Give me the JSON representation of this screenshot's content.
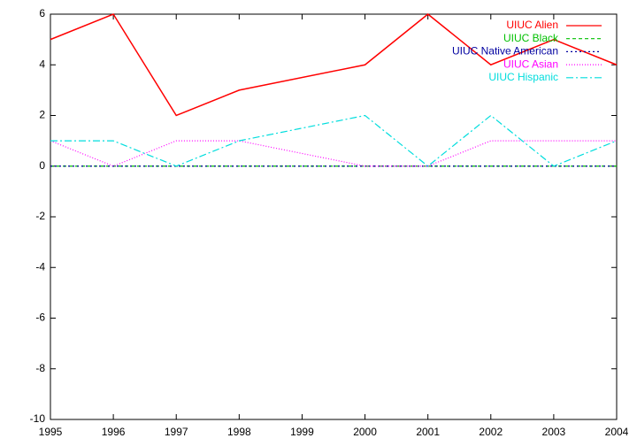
{
  "chart_data": {
    "type": "line",
    "x": [
      1995,
      1996,
      1997,
      1998,
      2000,
      2001,
      2002,
      2003,
      2004
    ],
    "series": [
      {
        "name": "UIUC Alien",
        "color": "#ff0000",
        "values": [
          5,
          6,
          2,
          3,
          4,
          6,
          4,
          5,
          4
        ]
      },
      {
        "name": "UIUC Black",
        "color": "#00c000",
        "values": [
          0,
          0,
          0,
          0,
          0,
          0,
          0,
          0,
          0
        ]
      },
      {
        "name": "UIUC Native American",
        "color": "#0000a0",
        "values": [
          0,
          0,
          0,
          0,
          0,
          0,
          0,
          0,
          0
        ]
      },
      {
        "name": "UIUC Asian",
        "color": "#ff00ff",
        "values": [
          1,
          0,
          1,
          1,
          0,
          0,
          1,
          1,
          1
        ]
      },
      {
        "name": "UIUC Hispanic",
        "color": "#00dddd",
        "values": [
          1,
          1,
          0,
          1,
          2,
          0,
          2,
          0,
          1
        ]
      }
    ],
    "xlim": [
      1995,
      2004
    ],
    "xticks": [
      1995,
      1996,
      1997,
      1998,
      1999,
      2000,
      2001,
      2002,
      2003,
      2004
    ],
    "ylim": [
      -10,
      6
    ],
    "yticks": [
      -10,
      -8,
      -6,
      -4,
      -2,
      0,
      2,
      4,
      6
    ],
    "legend": "top-right"
  }
}
